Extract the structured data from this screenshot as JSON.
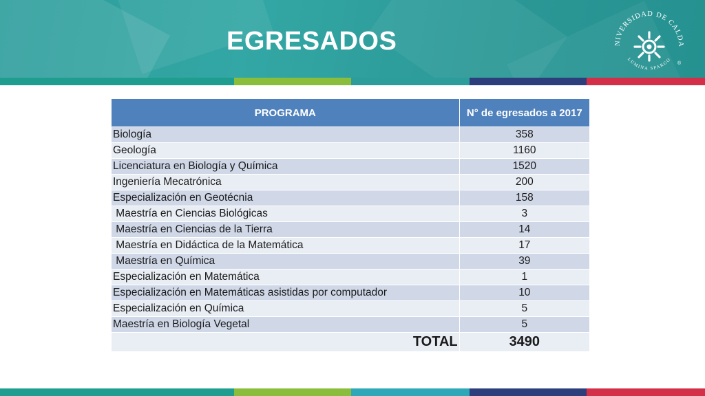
{
  "slide": {
    "title": "EGRESADOS"
  },
  "logo": {
    "institution": "UNIVERSIDAD DE CALDAS",
    "motto": "LUMINA SPARGO",
    "registered": "®",
    "icon": "sun-spiral-icon"
  },
  "table": {
    "headers": {
      "program": "PROGRAMA",
      "count": "N° de egresados a 2017"
    },
    "rows": [
      {
        "program": "Biología",
        "count": "358"
      },
      {
        "program": "Geología",
        "count": "1160"
      },
      {
        "program": "Licenciatura en Biología y Química",
        "count": "1520"
      },
      {
        "program": "Ingeniería Mecatrónica",
        "count": "200"
      },
      {
        "program": "Especialización en Geotécnia",
        "count": "158"
      },
      {
        "program": " Maestría en Ciencias Biológicas",
        "count": "3"
      },
      {
        "program": " Maestría en Ciencias de la Tierra",
        "count": "14"
      },
      {
        "program": " Maestría en Didáctica de la Matemática",
        "count": "17"
      },
      {
        "program": " Maestría en Química",
        "count": "39"
      },
      {
        "program": "Especialización en Matemática",
        "count": "1"
      },
      {
        "program": "Especialización en Matemáticas asistidas por computador",
        "count": "10"
      },
      {
        "program": "Especialización en Química",
        "count": "5"
      },
      {
        "program": "Maestría en Biología Vegetal",
        "count": "5"
      }
    ],
    "total": {
      "label": "TOTAL",
      "value": "3490"
    }
  },
  "colors": {
    "header_teal": "#2c9d9b",
    "table_header": "#4f81bd",
    "row_dark": "#d0d8e8",
    "row_light": "#e9edf4",
    "stripe": [
      "#1f9e8f",
      "#8bbd3c",
      "#2c9d9b",
      "#2ea7b8",
      "#2c3e7c",
      "#d42f48"
    ]
  }
}
